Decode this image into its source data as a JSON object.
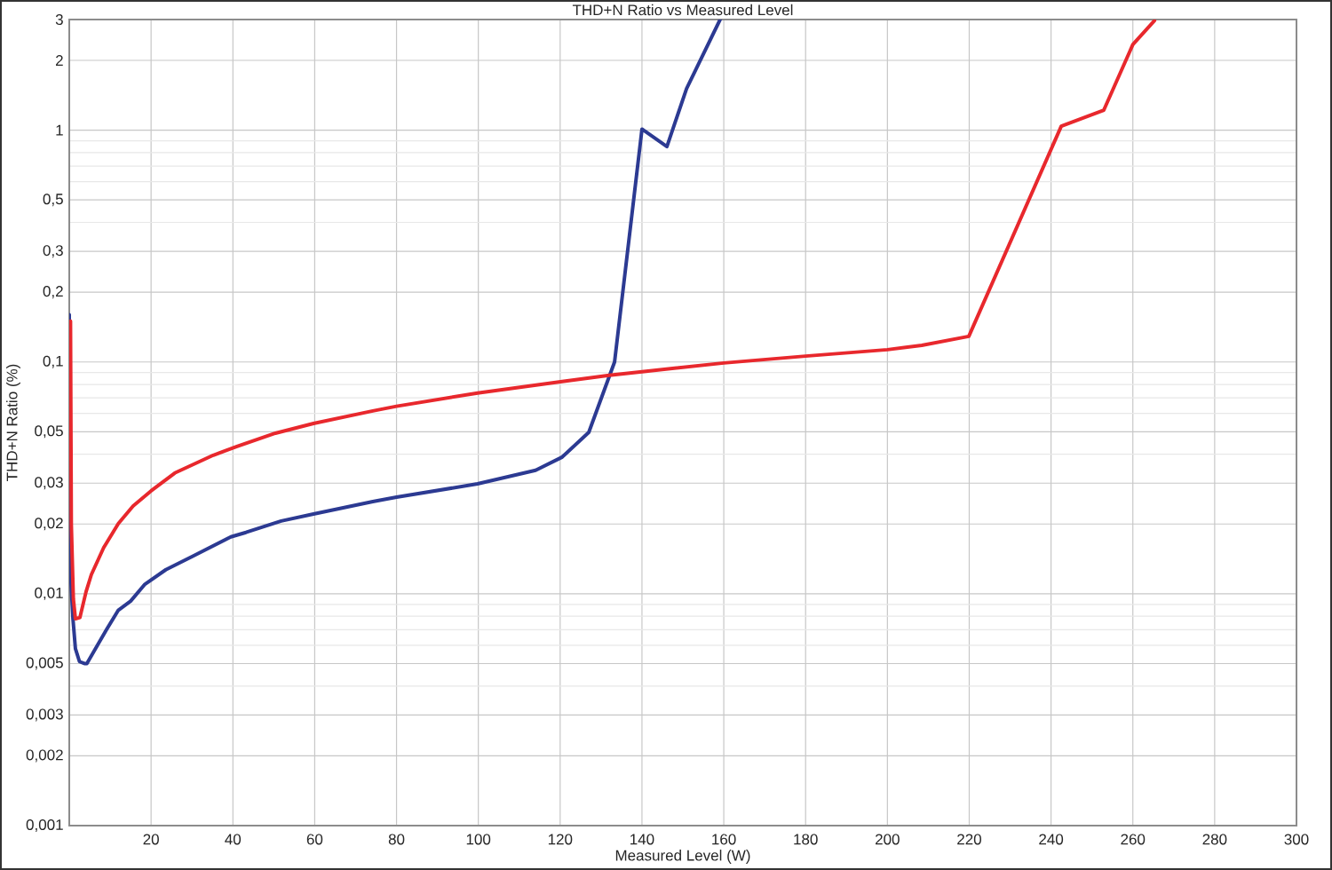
{
  "chart_data": {
    "type": "line",
    "title": "THD+N Ratio vs Measured Level",
    "xlabel": "Measured Level (W)",
    "ylabel": "THD+N Ratio (%)",
    "xlim": [
      0,
      300
    ],
    "xticks": [
      20,
      40,
      60,
      80,
      100,
      120,
      140,
      160,
      180,
      200,
      220,
      240,
      260,
      280,
      300
    ],
    "ylim": [
      0.001,
      3
    ],
    "yticks": [
      {
        "value": 0.001,
        "label": "0,001"
      },
      {
        "value": 0.002,
        "label": "0,002"
      },
      {
        "value": 0.003,
        "label": "0,003"
      },
      {
        "value": 0.005,
        "label": "0,005"
      },
      {
        "value": 0.01,
        "label": "0,01"
      },
      {
        "value": 0.02,
        "label": "0,02"
      },
      {
        "value": 0.03,
        "label": "0,03"
      },
      {
        "value": 0.05,
        "label": "0,05"
      },
      {
        "value": 0.1,
        "label": "0,1"
      },
      {
        "value": 0.2,
        "label": "0,2"
      },
      {
        "value": 0.3,
        "label": "0,3"
      },
      {
        "value": 0.5,
        "label": "0,5"
      },
      1,
      2,
      3
    ],
    "log": "y",
    "grid": true,
    "series": [
      {
        "color": "#2c3a92",
        "x": [
          0,
          0.2,
          0.9,
          1.5,
          2.5,
          3.7,
          4.3,
          6.9,
          9.1,
          12,
          15,
          18.5,
          23.6,
          30.1,
          39.5,
          43.2,
          51.8,
          59.7,
          74.2,
          80,
          99.8,
          114,
          120.5,
          127,
          133.3,
          140,
          146.1,
          150.9,
          159.1
        ],
        "values": [
          0.16,
          0.0133,
          0.0078,
          0.0058,
          0.0051,
          0.005,
          0.005,
          0.006,
          0.007,
          0.0085,
          0.0093,
          0.011,
          0.0127,
          0.0145,
          0.0176,
          0.0184,
          0.0206,
          0.0221,
          0.025,
          0.0261,
          0.0298,
          0.0341,
          0.0389,
          0.0497,
          0.1,
          1.01,
          0.85,
          1.51,
          3
        ]
      },
      {
        "color": "#e8282d",
        "x": [
          0.3,
          0.5,
          1.0,
          1.5,
          2.6,
          4.1,
          5.4,
          8.4,
          12,
          15.6,
          20,
          25.8,
          35.2,
          41,
          50.4,
          59.7,
          74.2,
          80,
          99.8,
          120.5,
          132,
          140,
          160,
          180,
          200,
          208.4,
          219.9,
          242.5,
          252.9,
          260,
          265.3
        ],
        "values": [
          0.15,
          0.02,
          0.0095,
          0.0078,
          0.0079,
          0.0102,
          0.0121,
          0.0158,
          0.0201,
          0.0239,
          0.0278,
          0.0332,
          0.0396,
          0.0432,
          0.0493,
          0.0543,
          0.0615,
          0.0644,
          0.0735,
          0.0824,
          0.0876,
          0.0908,
          0.099,
          0.106,
          0.113,
          0.118,
          0.129,
          1.04,
          1.22,
          2.34,
          2.97
        ]
      }
    ]
  }
}
